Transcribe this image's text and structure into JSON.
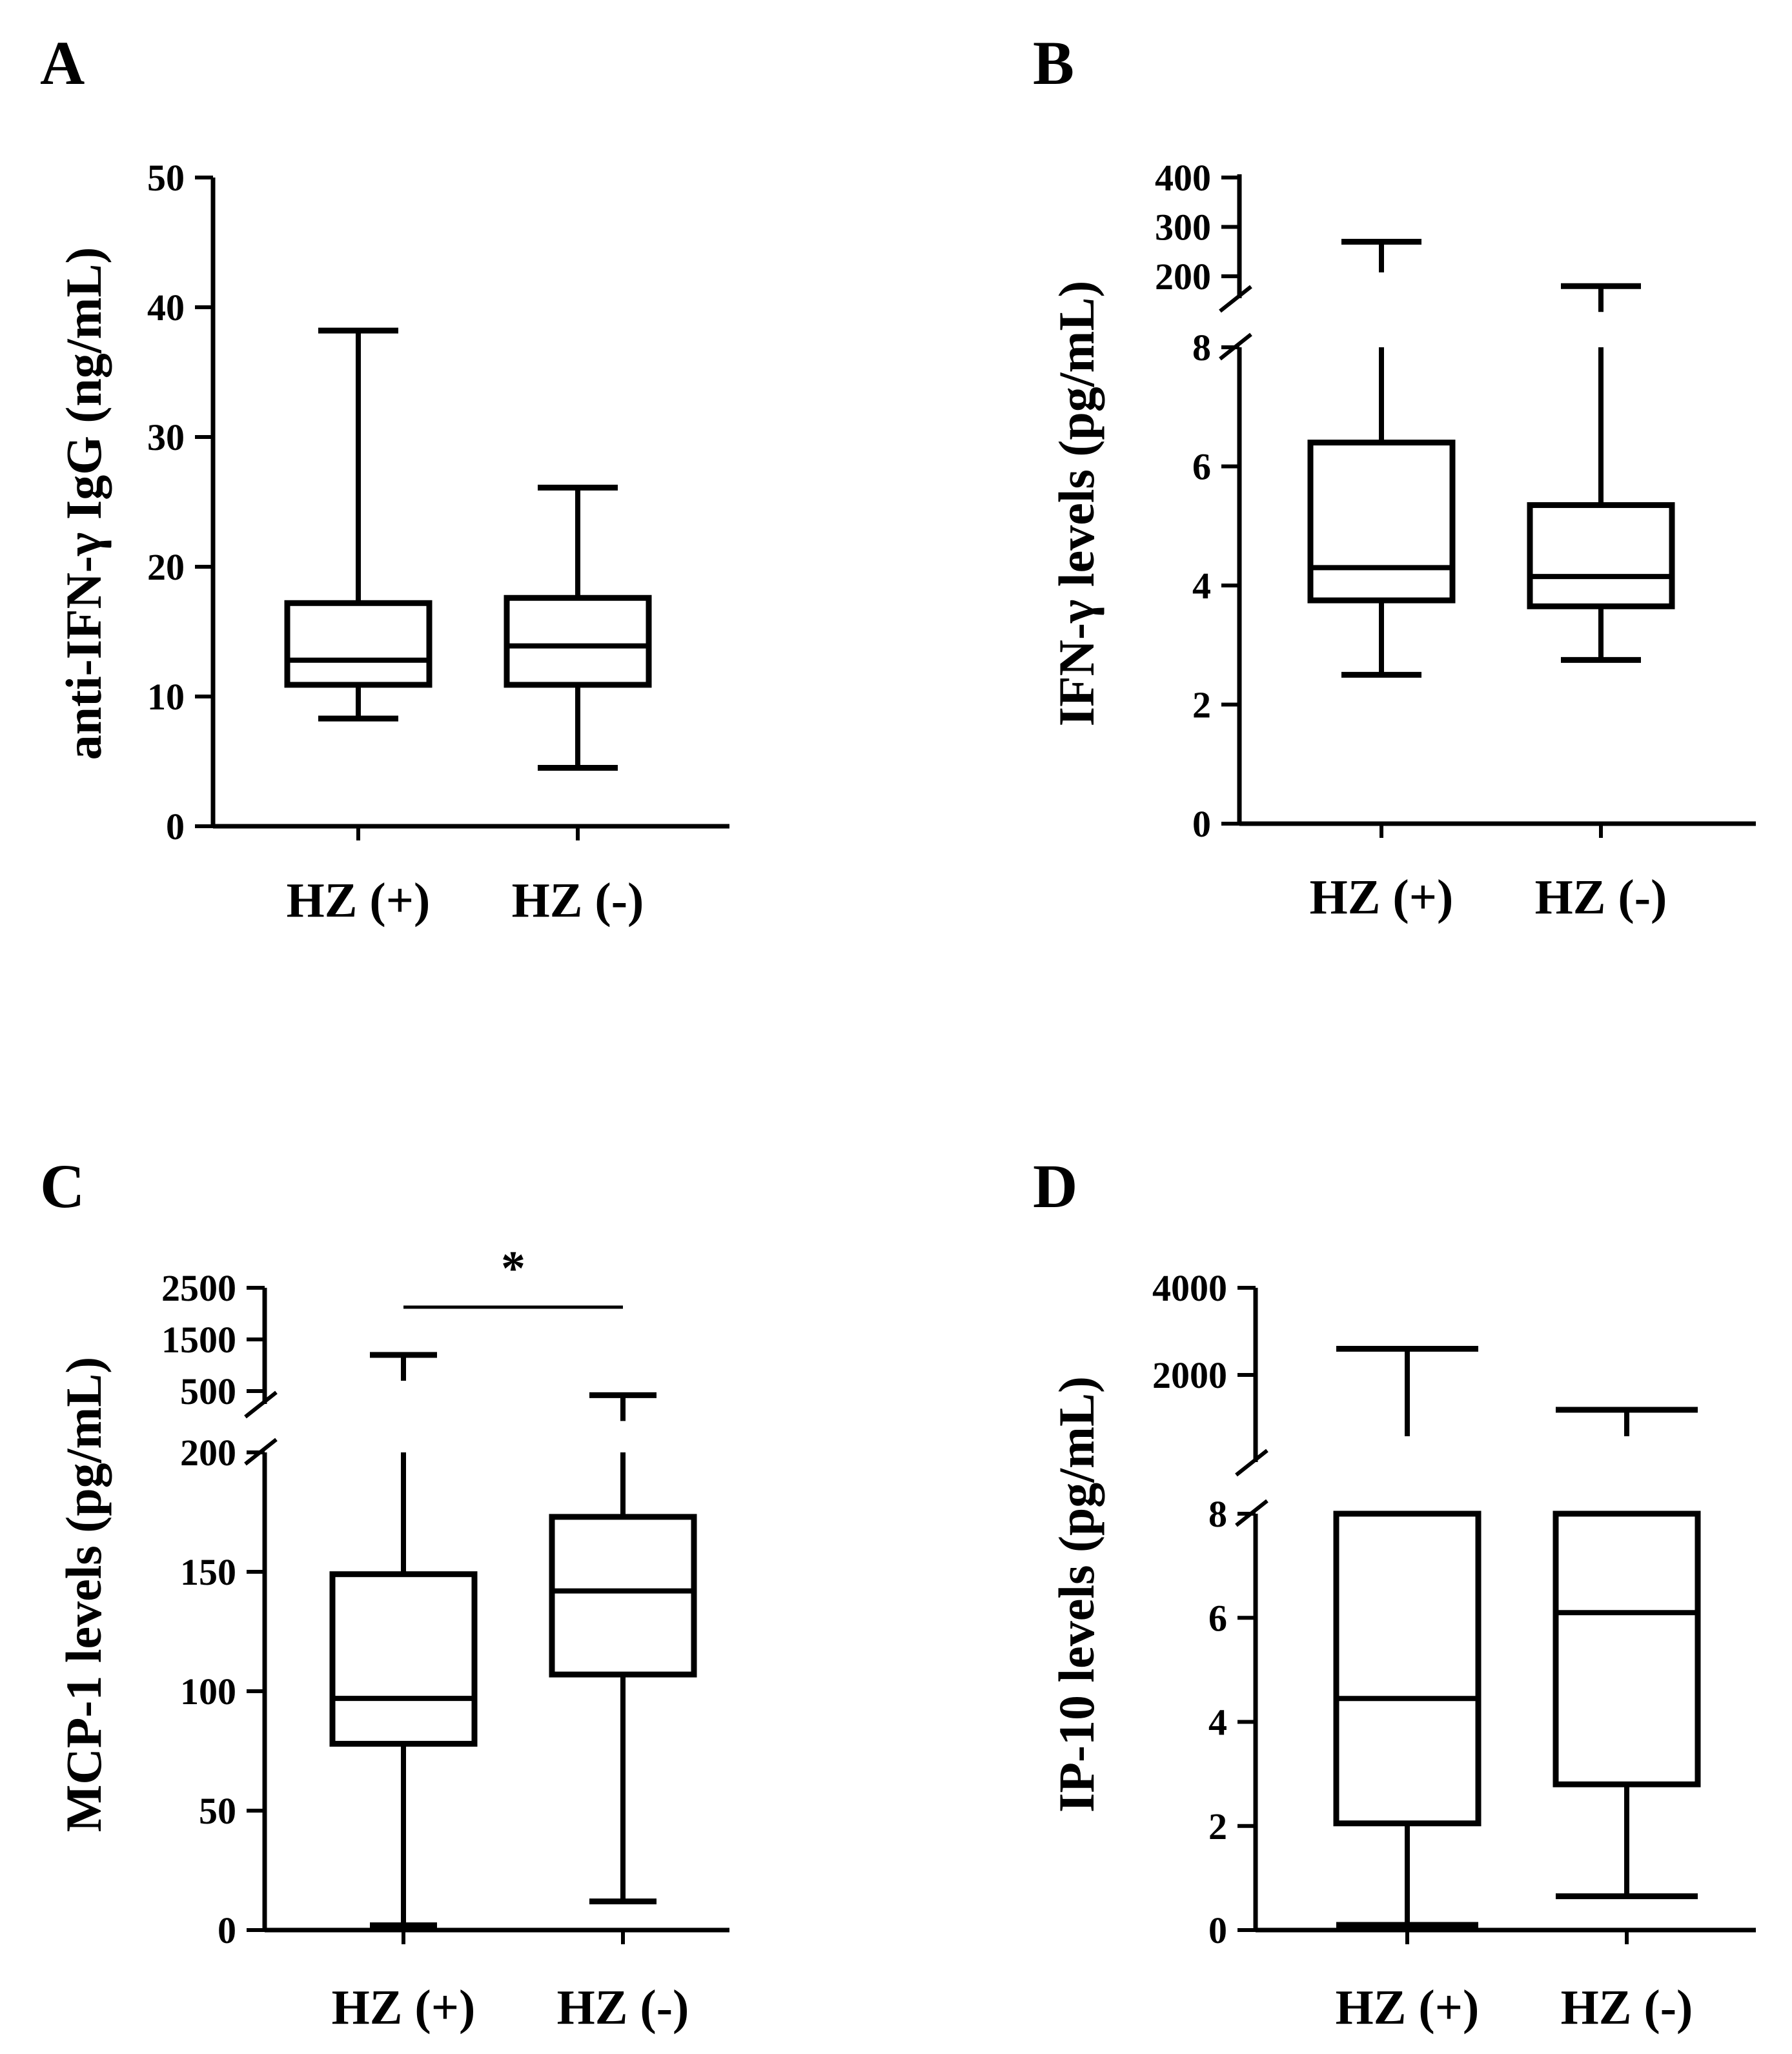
{
  "figure": {
    "panels": [
      "A",
      "B",
      "C",
      "D"
    ]
  },
  "chart_data": [
    {
      "panel": "A",
      "type": "box",
      "ylabel": "anti-IFN-γ IgG (ng/mL)",
      "categories": [
        "HZ (+)",
        "HZ (-)"
      ],
      "y_ticks": [
        "0",
        "10",
        "20",
        "30",
        "40",
        "50"
      ],
      "ylim": [
        0,
        50
      ],
      "broken_axis": false,
      "boxes": [
        {
          "category": "HZ (+)",
          "min": 8.3,
          "q1": 10.9,
          "median": 12.8,
          "q3": 17.2,
          "max": 38.2
        },
        {
          "category": "HZ (-)",
          "min": 4.5,
          "q1": 10.9,
          "median": 13.9,
          "q3": 17.6,
          "max": 26.1
        }
      ]
    },
    {
      "panel": "B",
      "type": "box",
      "ylabel": "IFN-γ levels (pg/mL)",
      "categories": [
        "HZ (+)",
        "HZ (-)"
      ],
      "y_ticks_lower": [
        "0",
        "2",
        "4",
        "6",
        "8"
      ],
      "y_ticks_upper": [
        "200",
        "300",
        "400"
      ],
      "broken_axis": true,
      "boxes": [
        {
          "category": "HZ (+)",
          "min": 2.5,
          "q1": 3.75,
          "median": 4.3,
          "q3": 6.4,
          "max": 270
        },
        {
          "category": "HZ (-)",
          "min": 2.75,
          "q1": 3.65,
          "median": 4.15,
          "q3": 5.35,
          "max": 180
        }
      ]
    },
    {
      "panel": "C",
      "type": "box",
      "ylabel": "MCP-1 levels (pg/mL)",
      "categories": [
        "HZ (+)",
        "HZ (-)"
      ],
      "y_ticks_lower": [
        "0",
        "50",
        "100",
        "150",
        "200"
      ],
      "y_ticks_upper": [
        "500",
        "1500",
        "2500"
      ],
      "broken_axis": true,
      "significance": "*",
      "boxes": [
        {
          "category": "HZ (+)",
          "min": 2,
          "q1": 78,
          "median": 97,
          "q3": 149,
          "max": 1200
        },
        {
          "category": "HZ (-)",
          "min": 12,
          "q1": 107,
          "median": 142,
          "q3": 173,
          "max": 420
        }
      ]
    },
    {
      "panel": "D",
      "type": "box",
      "ylabel": "IP-10 levels (pg/mL)",
      "categories": [
        "HZ (+)",
        "HZ (-)"
      ],
      "y_ticks_lower": [
        "0",
        "2",
        "4",
        "6",
        "8"
      ],
      "y_ticks_upper": [
        "2000",
        "4000"
      ],
      "broken_axis": true,
      "boxes": [
        {
          "category": "HZ (+)",
          "min": 0.1,
          "q1": 2.05,
          "median": 4.45,
          "q3": 8,
          "max": 2600
        },
        {
          "category": "HZ (-)",
          "min": 0.65,
          "q1": 2.8,
          "median": 6.1,
          "q3": 8,
          "max": 1200
        }
      ]
    }
  ]
}
